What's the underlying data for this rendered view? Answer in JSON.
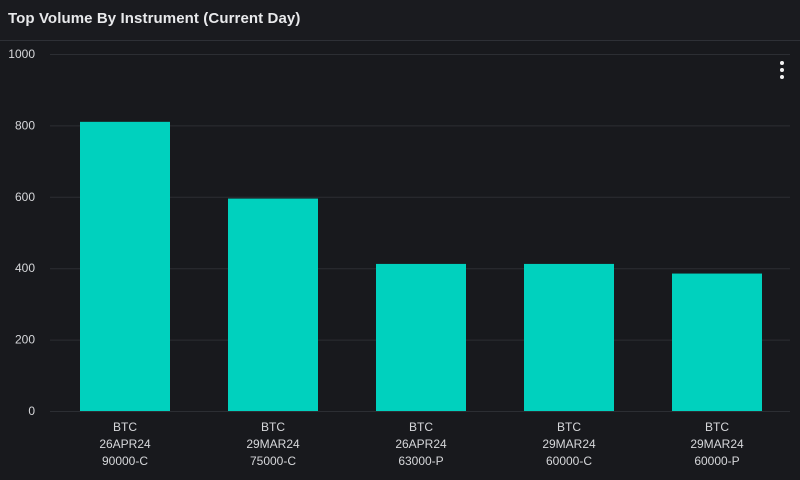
{
  "header": {
    "title": "Top Volume By Instrument (Current Day)"
  },
  "menu": {
    "icon": "more-vertical-icon"
  },
  "colors": {
    "background": "#18191d",
    "bar": "#00d1be",
    "grid": "#2c2e33",
    "axis_text": "#d6d7da"
  },
  "chart_data": {
    "type": "bar",
    "title": "Top Volume By Instrument (Current Day)",
    "xlabel": "",
    "ylabel": "",
    "ylim": [
      0,
      1000
    ],
    "yticks": [
      0,
      200,
      400,
      600,
      800,
      1000
    ],
    "grid": true,
    "categories": [
      [
        "BTC",
        "26APR24",
        "90000-C"
      ],
      [
        "BTC",
        "29MAR24",
        "75000-C"
      ],
      [
        "BTC",
        "26APR24",
        "63000-P"
      ],
      [
        "BTC",
        "29MAR24",
        "60000-C"
      ],
      [
        "BTC",
        "29MAR24",
        "60000-P"
      ]
    ],
    "values": [
      810,
      595,
      412,
      412,
      385
    ]
  }
}
